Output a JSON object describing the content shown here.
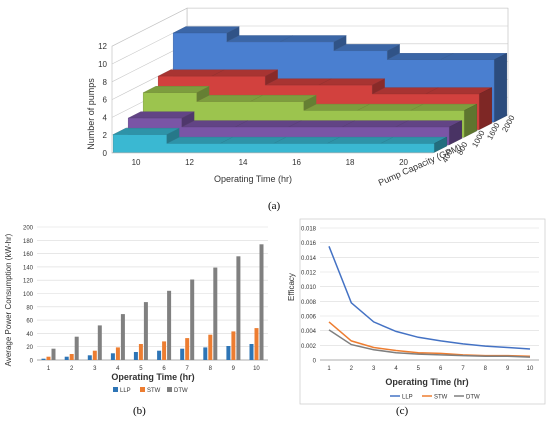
{
  "colors": {
    "blue3d": "#4a7fd0",
    "red3d": "#d2413e",
    "green3d": "#9cc44e",
    "purple3d": "#7a55a6",
    "cyan3d": "#3ab8d2",
    "llp": "#2e75b6",
    "stw": "#ed7d31",
    "dtw": "#808080",
    "llp_line": "#4472c4",
    "stw_line": "#ed7d31",
    "dtw_line": "#7f7f7f"
  },
  "captions": {
    "a": "(a)",
    "b": "(b)",
    "c": "(c)"
  },
  "chart_data": [
    {
      "type": "bar",
      "subtype": "3d-step",
      "title": "",
      "xlabel": "Operating Time (hr)",
      "ylabel": "Number of pumps",
      "zlabel": "Pump Capacity (GPM)",
      "categories": [
        "10",
        "12",
        "14",
        "16",
        "18",
        "20"
      ],
      "ylim": [
        0,
        12
      ],
      "yticks": [
        "0",
        "2",
        "4",
        "6",
        "8",
        "10",
        "12"
      ],
      "series": [
        {
          "name": "2000",
          "values": [
            10,
            9,
            9,
            8,
            7,
            7
          ]
        },
        {
          "name": "1600",
          "values": [
            6,
            6,
            5,
            5,
            4,
            4
          ]
        },
        {
          "name": "1000",
          "values": [
            5,
            4,
            4,
            3,
            3,
            3
          ]
        },
        {
          "name": "800",
          "values": [
            3,
            2,
            2,
            2,
            2,
            2
          ]
        },
        {
          "name": "400",
          "values": [
            2,
            1,
            1,
            1,
            1,
            1
          ]
        }
      ],
      "grid": true
    },
    {
      "type": "bar",
      "title": "",
      "xlabel": "Operating Time (hr)",
      "ylabel": "Average Power Consumption (kW-hr)",
      "categories": [
        "1",
        "2",
        "3",
        "4",
        "5",
        "6",
        "7",
        "8",
        "9",
        "10"
      ],
      "ylim": [
        0,
        200
      ],
      "yticks": [
        "0",
        "20",
        "40",
        "60",
        "80",
        "100",
        "120",
        "140",
        "160",
        "180",
        "200"
      ],
      "series": [
        {
          "name": "LLP",
          "values": [
            2,
            5,
            7,
            10,
            12,
            14,
            17,
            19,
            21,
            24
          ]
        },
        {
          "name": "STW",
          "values": [
            5,
            9,
            14,
            19,
            24,
            28,
            33,
            38,
            43,
            48
          ]
        },
        {
          "name": "DTW",
          "values": [
            17,
            35,
            52,
            69,
            87,
            104,
            121,
            139,
            156,
            174
          ]
        }
      ],
      "legend": "bottom",
      "grid": true
    },
    {
      "type": "line",
      "title": "",
      "xlabel": "Operating Time (hr)",
      "ylabel": "Efficacy",
      "x": [
        1,
        2,
        3,
        4,
        5,
        6,
        7,
        8,
        9,
        10
      ],
      "ylim": [
        0,
        0.018
      ],
      "yticks": [
        "0",
        "0.002",
        "0.004",
        "0.006",
        "0.008",
        "0.010",
        "0.012",
        "0.014",
        "0.016",
        "0.018"
      ],
      "series": [
        {
          "name": "LLP",
          "values": [
            0.0155,
            0.0078,
            0.0052,
            0.0039,
            0.0031,
            0.0026,
            0.0022,
            0.0019,
            0.0017,
            0.0015
          ]
        },
        {
          "name": "STW",
          "values": [
            0.0052,
            0.0026,
            0.0017,
            0.0013,
            0.001,
            0.0009,
            0.0007,
            0.0006,
            0.0006,
            0.0005
          ]
        },
        {
          "name": "DTW",
          "values": [
            0.0041,
            0.0021,
            0.0014,
            0.001,
            0.0008,
            0.0007,
            0.0006,
            0.0005,
            0.0005,
            0.0004
          ]
        }
      ],
      "legend": "bottom",
      "grid": true
    }
  ]
}
